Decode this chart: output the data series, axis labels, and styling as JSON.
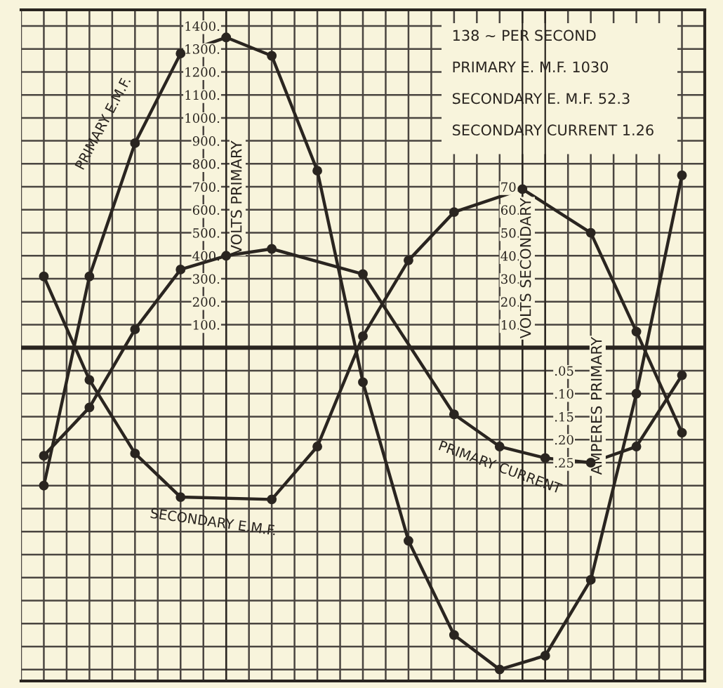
{
  "chart_data": {
    "type": "line",
    "annotations": [
      "138 ∼ PER SECOND",
      "PRIMARY E. M.F. 1030",
      "SECONDARY E. M.F. 52.3",
      "SECONDARY CURRENT 1.26"
    ],
    "ylabel": "VOLTS PRIMARY",
    "y2label": "VOLTS SECONDARY",
    "y3label": "AMPERES PRIMARY",
    "categories": [
      null,
      null,
      null,
      null,
      null,
      null,
      null,
      null,
      null,
      null,
      null,
      null,
      null,
      null,
      null,
      null,
      null,
      null,
      null,
      null,
      null,
      null,
      null,
      null,
      null,
      null,
      null,
      null,
      null
    ],
    "ylim": [
      -1450,
      1470
    ],
    "yticks": [
      {
        "value": -1400,
        "label": null
      },
      {
        "value": -1300,
        "label": null
      },
      {
        "value": -1200,
        "label": null
      },
      {
        "value": -1100,
        "label": null
      },
      {
        "value": -1000,
        "label": null
      },
      {
        "value": -900,
        "label": null
      },
      {
        "value": -800,
        "label": null
      },
      {
        "value": -700,
        "label": null
      },
      {
        "value": -600,
        "label": null
      },
      {
        "value": -500,
        "label": null
      },
      {
        "value": -400,
        "label": null
      },
      {
        "value": -300,
        "label": null
      },
      {
        "value": -200,
        "label": null
      },
      {
        "value": -100,
        "label": null
      },
      {
        "value": 0,
        "label": null
      },
      {
        "value": 100,
        "label": "100."
      },
      {
        "value": 200,
        "label": "200."
      },
      {
        "value": 300,
        "label": "300."
      },
      {
        "value": 400,
        "label": "400."
      },
      {
        "value": 500,
        "label": "500."
      },
      {
        "value": 600,
        "label": "600."
      },
      {
        "value": 700,
        "label": "700."
      },
      {
        "value": 800,
        "label": "800."
      },
      {
        "value": 900,
        "label": "900."
      },
      {
        "value": 1000,
        "label": "1000."
      },
      {
        "value": 1100,
        "label": "1100."
      },
      {
        "value": 1200,
        "label": "1200."
      },
      {
        "value": 1300,
        "label": "1300."
      },
      {
        "value": 1400,
        "label": "1400."
      }
    ],
    "y2lim": [
      -145,
      147
    ],
    "y2ticks": [
      {
        "value": 10,
        "label": "10."
      },
      {
        "value": 20,
        "label": "20."
      },
      {
        "value": 30,
        "label": "30."
      },
      {
        "value": 40,
        "label": "40."
      },
      {
        "value": 50,
        "label": "50."
      },
      {
        "value": 60,
        "label": "60."
      },
      {
        "value": 70,
        "label": "70."
      }
    ],
    "y3lim": [
      0.725,
      -0.735
    ],
    "y3ticks": [
      {
        "value": 0.05,
        "label": ".05"
      },
      {
        "value": 0.1,
        "label": ".10"
      },
      {
        "value": 0.15,
        "label": ".15"
      },
      {
        "value": 0.2,
        "label": ".20"
      },
      {
        "value": 0.25,
        "label": ".25"
      }
    ],
    "grid": true,
    "tick_labels": "y",
    "marker": "circle",
    "line_style": "solid",
    "ref_lines": [
      {
        "axis": "y",
        "value": 0,
        "color": "#2a2520"
      }
    ],
    "series": [
      {
        "name": "PRIMARY E.M.F.",
        "color": "#2a2520",
        "axis": "y",
        "values": [
          -600,
          null,
          310,
          null,
          890,
          null,
          1280,
          null,
          1350,
          null,
          1270,
          null,
          770,
          null,
          -150,
          null,
          -840,
          null,
          -1250,
          null,
          -1400,
          null,
          -1340,
          null,
          -1010,
          null,
          -200,
          null,
          750
        ]
      },
      {
        "name": "PRIMARY CURRENT",
        "color": "#2a2520",
        "axis": "y3",
        "values": [
          0.235,
          null,
          0.13,
          null,
          -0.04,
          null,
          -0.17,
          null,
          -0.2,
          null,
          -0.215,
          null,
          null,
          null,
          -0.16,
          null,
          null,
          null,
          0.145,
          null,
          0.215,
          null,
          0.24,
          null,
          0.25,
          null,
          0.215,
          null,
          0.06
        ]
      },
      {
        "name": "SECONDARY E.M.F.",
        "color": "#2a2520",
        "axis": "y2",
        "values": [
          31,
          null,
          -14,
          null,
          -46,
          null,
          -65,
          null,
          null,
          null,
          -66,
          null,
          -43,
          null,
          5,
          null,
          38,
          null,
          59,
          null,
          null,
          69,
          null,
          null,
          50,
          null,
          7,
          null,
          -37
        ]
      }
    ]
  }
}
